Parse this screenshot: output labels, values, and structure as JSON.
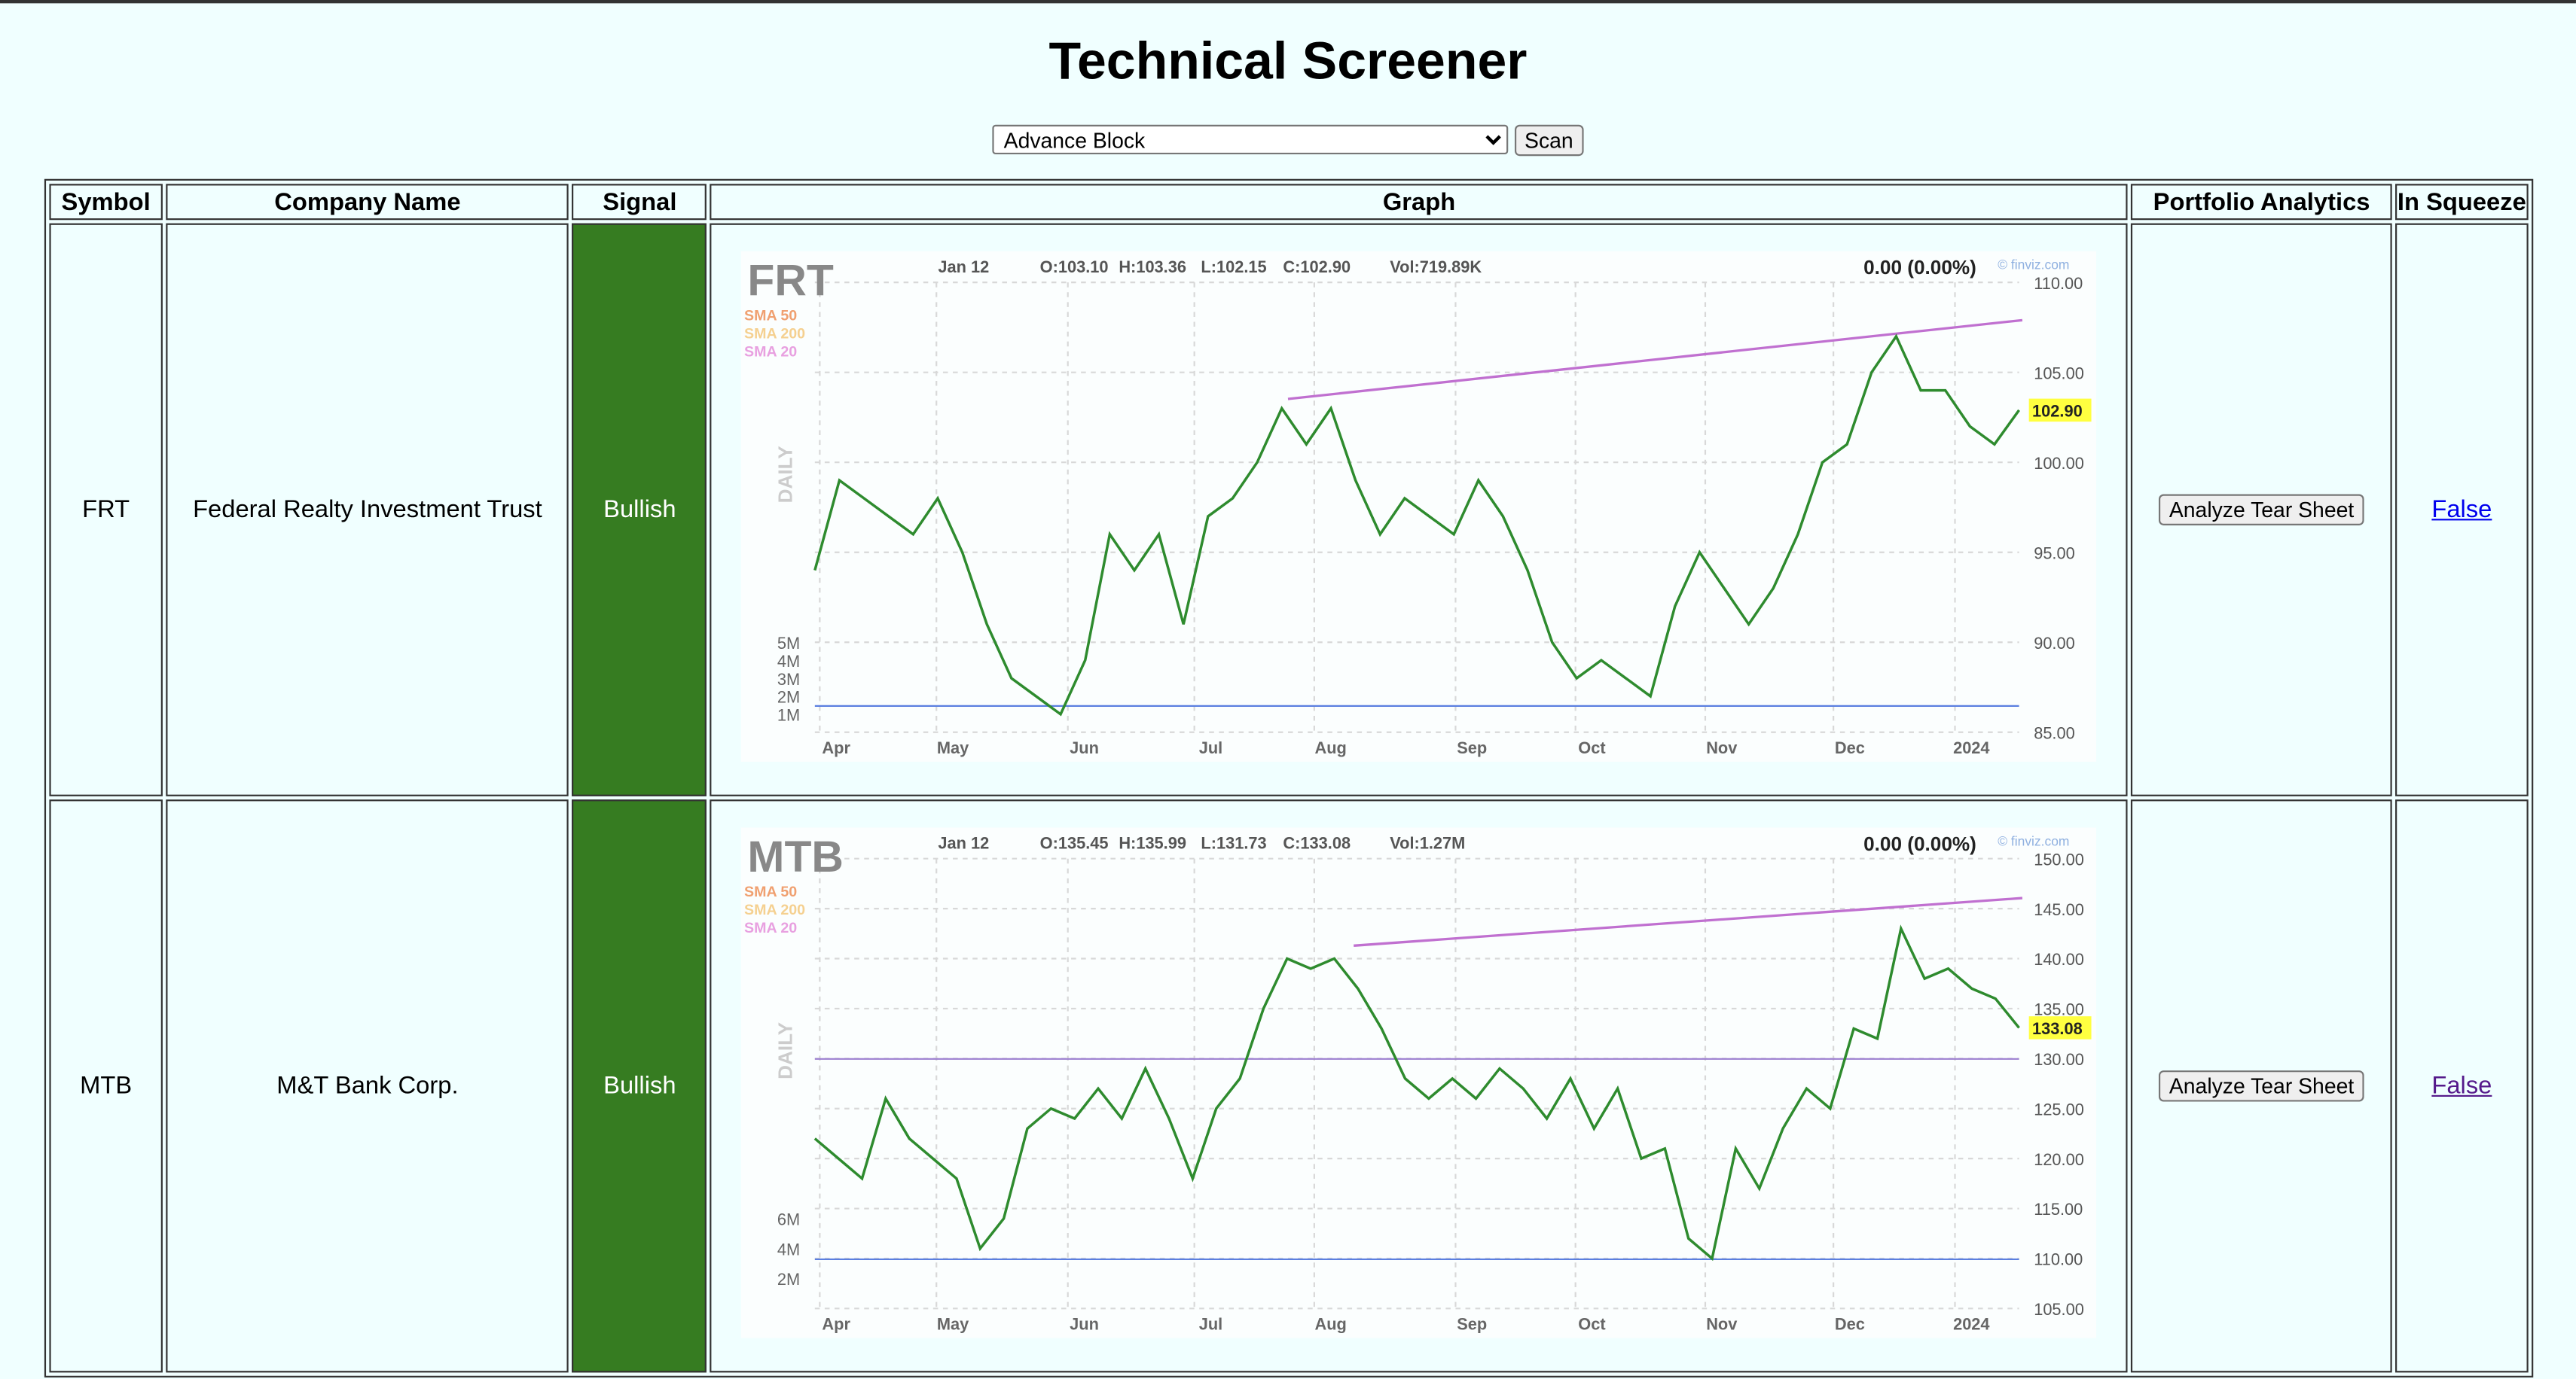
{
  "header": {
    "title": "Technical Screener"
  },
  "controls": {
    "pattern": "Advance Block",
    "button": "Scan"
  },
  "table": {
    "columns": [
      "Symbol",
      "Company Name",
      "Signal",
      "Graph",
      "Portfolio Analytics",
      "In Squeeze"
    ],
    "rows": [
      {
        "symbol": "FRT",
        "company": "Federal Realty Investment Trust",
        "signal": "Bullish",
        "action": "Analyze Tear Sheet",
        "squeeze": "False",
        "graph": {
          "type": "line",
          "ticker": "FRT",
          "date": "Jan 12",
          "open": "O:103.10",
          "high": "H:103.36",
          "low": "L:102.15",
          "close": "C:102.90",
          "volume": "Vol:719.89K",
          "change": "0.00 (0.00%)",
          "watermark": "© finviz.com",
          "legend": [
            "SMA 50",
            "SMA 200",
            "SMA 20"
          ],
          "period": "DAILY",
          "price_tag": "102.90",
          "color": "#2e8b2e",
          "months": [
            "Apr",
            "May",
            "Jun",
            "Jul",
            "Aug",
            "Sep",
            "Oct",
            "Nov",
            "Dec",
            "2024"
          ],
          "ylim": [
            85,
            110
          ],
          "yticks": [
            {
              "value": 85,
              "label": "85.00"
            },
            {
              "value": 90,
              "label": "90.00"
            },
            {
              "value": 95,
              "label": "95.00"
            },
            {
              "value": 100,
              "label": "100.00"
            },
            {
              "value": 105,
              "label": "105.00"
            },
            {
              "value": 110,
              "label": "110.00"
            }
          ],
          "volume_ylim": [
            0,
            25000000
          ],
          "volume_ticks": [
            {
              "value": 1000000,
              "label": "1M"
            },
            {
              "value": 2000000,
              "label": "2M"
            },
            {
              "value": 3000000,
              "label": "3M"
            },
            {
              "value": 4000000,
              "label": "4M"
            },
            {
              "value": 5000000,
              "label": "5M"
            }
          ],
          "values": [
            94,
            99,
            98,
            97,
            96,
            98,
            95,
            91,
            88,
            87,
            86,
            89,
            96,
            94,
            96,
            91,
            97,
            98,
            100,
            103,
            101,
            103,
            99,
            96,
            98,
            97,
            96,
            99,
            97,
            94,
            90,
            88,
            89,
            88,
            87,
            92,
            95,
            93,
            91,
            93,
            96,
            100,
            101,
            105,
            107,
            104,
            104,
            102,
            101,
            102.9
          ]
        }
      },
      {
        "symbol": "MTB",
        "company": "M&T Bank Corp.",
        "signal": "Bullish",
        "action": "Analyze Tear Sheet",
        "squeeze": "False",
        "graph": {
          "type": "line",
          "ticker": "MTB",
          "date": "Jan 12",
          "open": "O:135.45",
          "high": "H:135.99",
          "low": "L:131.73",
          "close": "C:133.08",
          "volume": "Vol:1.27M",
          "change": "0.00 (0.00%)",
          "watermark": "© finviz.com",
          "legend": [
            "SMA 50",
            "SMA 200",
            "SMA 20"
          ],
          "period": "DAILY",
          "price_tag": "133.08",
          "color": "#2e8b2e",
          "months": [
            "Apr",
            "May",
            "Jun",
            "Jul",
            "Aug",
            "Sep",
            "Oct",
            "Nov",
            "Dec",
            "2024"
          ],
          "ylim": [
            105,
            150
          ],
          "yticks": [
            {
              "value": 105,
              "label": "105.00"
            },
            {
              "value": 110,
              "label": "110.00"
            },
            {
              "value": 115,
              "label": "115.00"
            },
            {
              "value": 120,
              "label": "120.00"
            },
            {
              "value": 125,
              "label": "125.00"
            },
            {
              "value": 130,
              "label": "130.00"
            },
            {
              "value": 135,
              "label": "135.00"
            },
            {
              "value": 140,
              "label": "140.00"
            },
            {
              "value": 145,
              "label": "145.00"
            },
            {
              "value": 150,
              "label": "150.00"
            }
          ],
          "volume_ylim": [
            0,
            30000000
          ],
          "volume_ticks": [
            {
              "value": 2000000,
              "label": "2M"
            },
            {
              "value": 4000000,
              "label": "4M"
            },
            {
              "value": 6000000,
              "label": "6M"
            }
          ],
          "values": [
            122,
            120,
            118,
            126,
            122,
            120,
            118,
            111,
            114,
            123,
            125,
            124,
            127,
            124,
            129,
            124,
            118,
            125,
            128,
            135,
            140,
            139,
            140,
            137,
            133,
            128,
            126,
            128,
            126,
            129,
            127,
            124,
            128,
            123,
            127,
            120,
            121,
            112,
            110,
            121,
            117,
            123,
            127,
            125,
            133,
            132,
            143,
            138,
            139,
            137,
            136,
            133.08
          ]
        }
      }
    ]
  }
}
